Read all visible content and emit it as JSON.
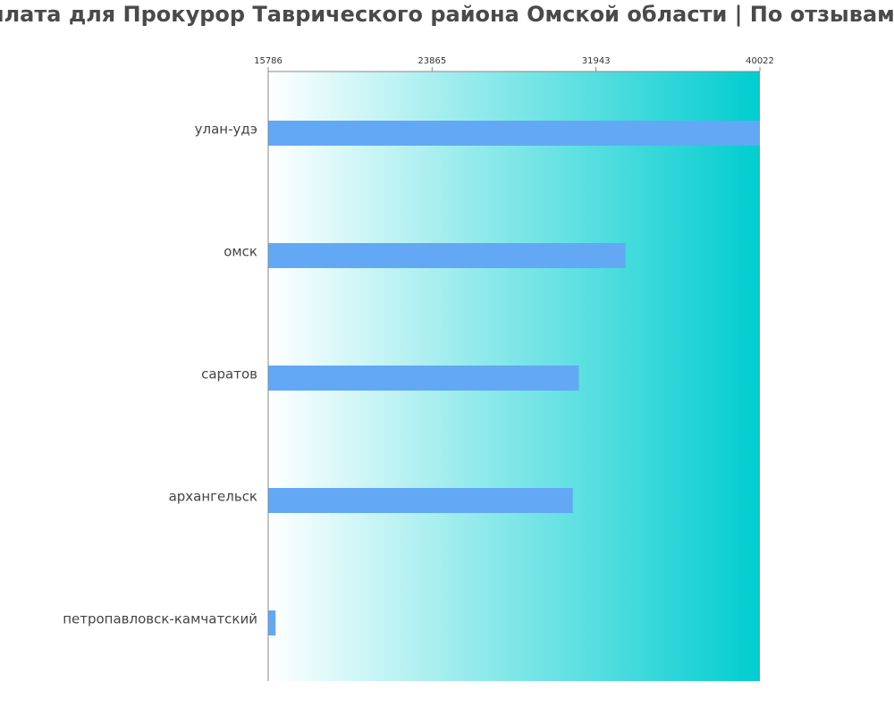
{
  "chart_data": {
    "type": "bar",
    "orientation": "horizontal",
    "title": "плата для Прокурор Таврического района Омской области | По отзывам",
    "categories": [
      "улан-удэ",
      "омск",
      "саратов",
      "архангельск",
      "петропавловск-камчатский"
    ],
    "values": [
      40022,
      33400,
      31100,
      30800,
      16150
    ],
    "xlim": [
      15786,
      40022
    ],
    "xticks": [
      15786,
      23865,
      31943,
      40022
    ],
    "xticks_position": "top",
    "grid": false,
    "colors": {
      "bar": "#63a8f4",
      "gradient_start": "#ffffff",
      "gradient_end": "#00cdd0",
      "axis": "#888888",
      "title": "#4a4a4a"
    }
  }
}
